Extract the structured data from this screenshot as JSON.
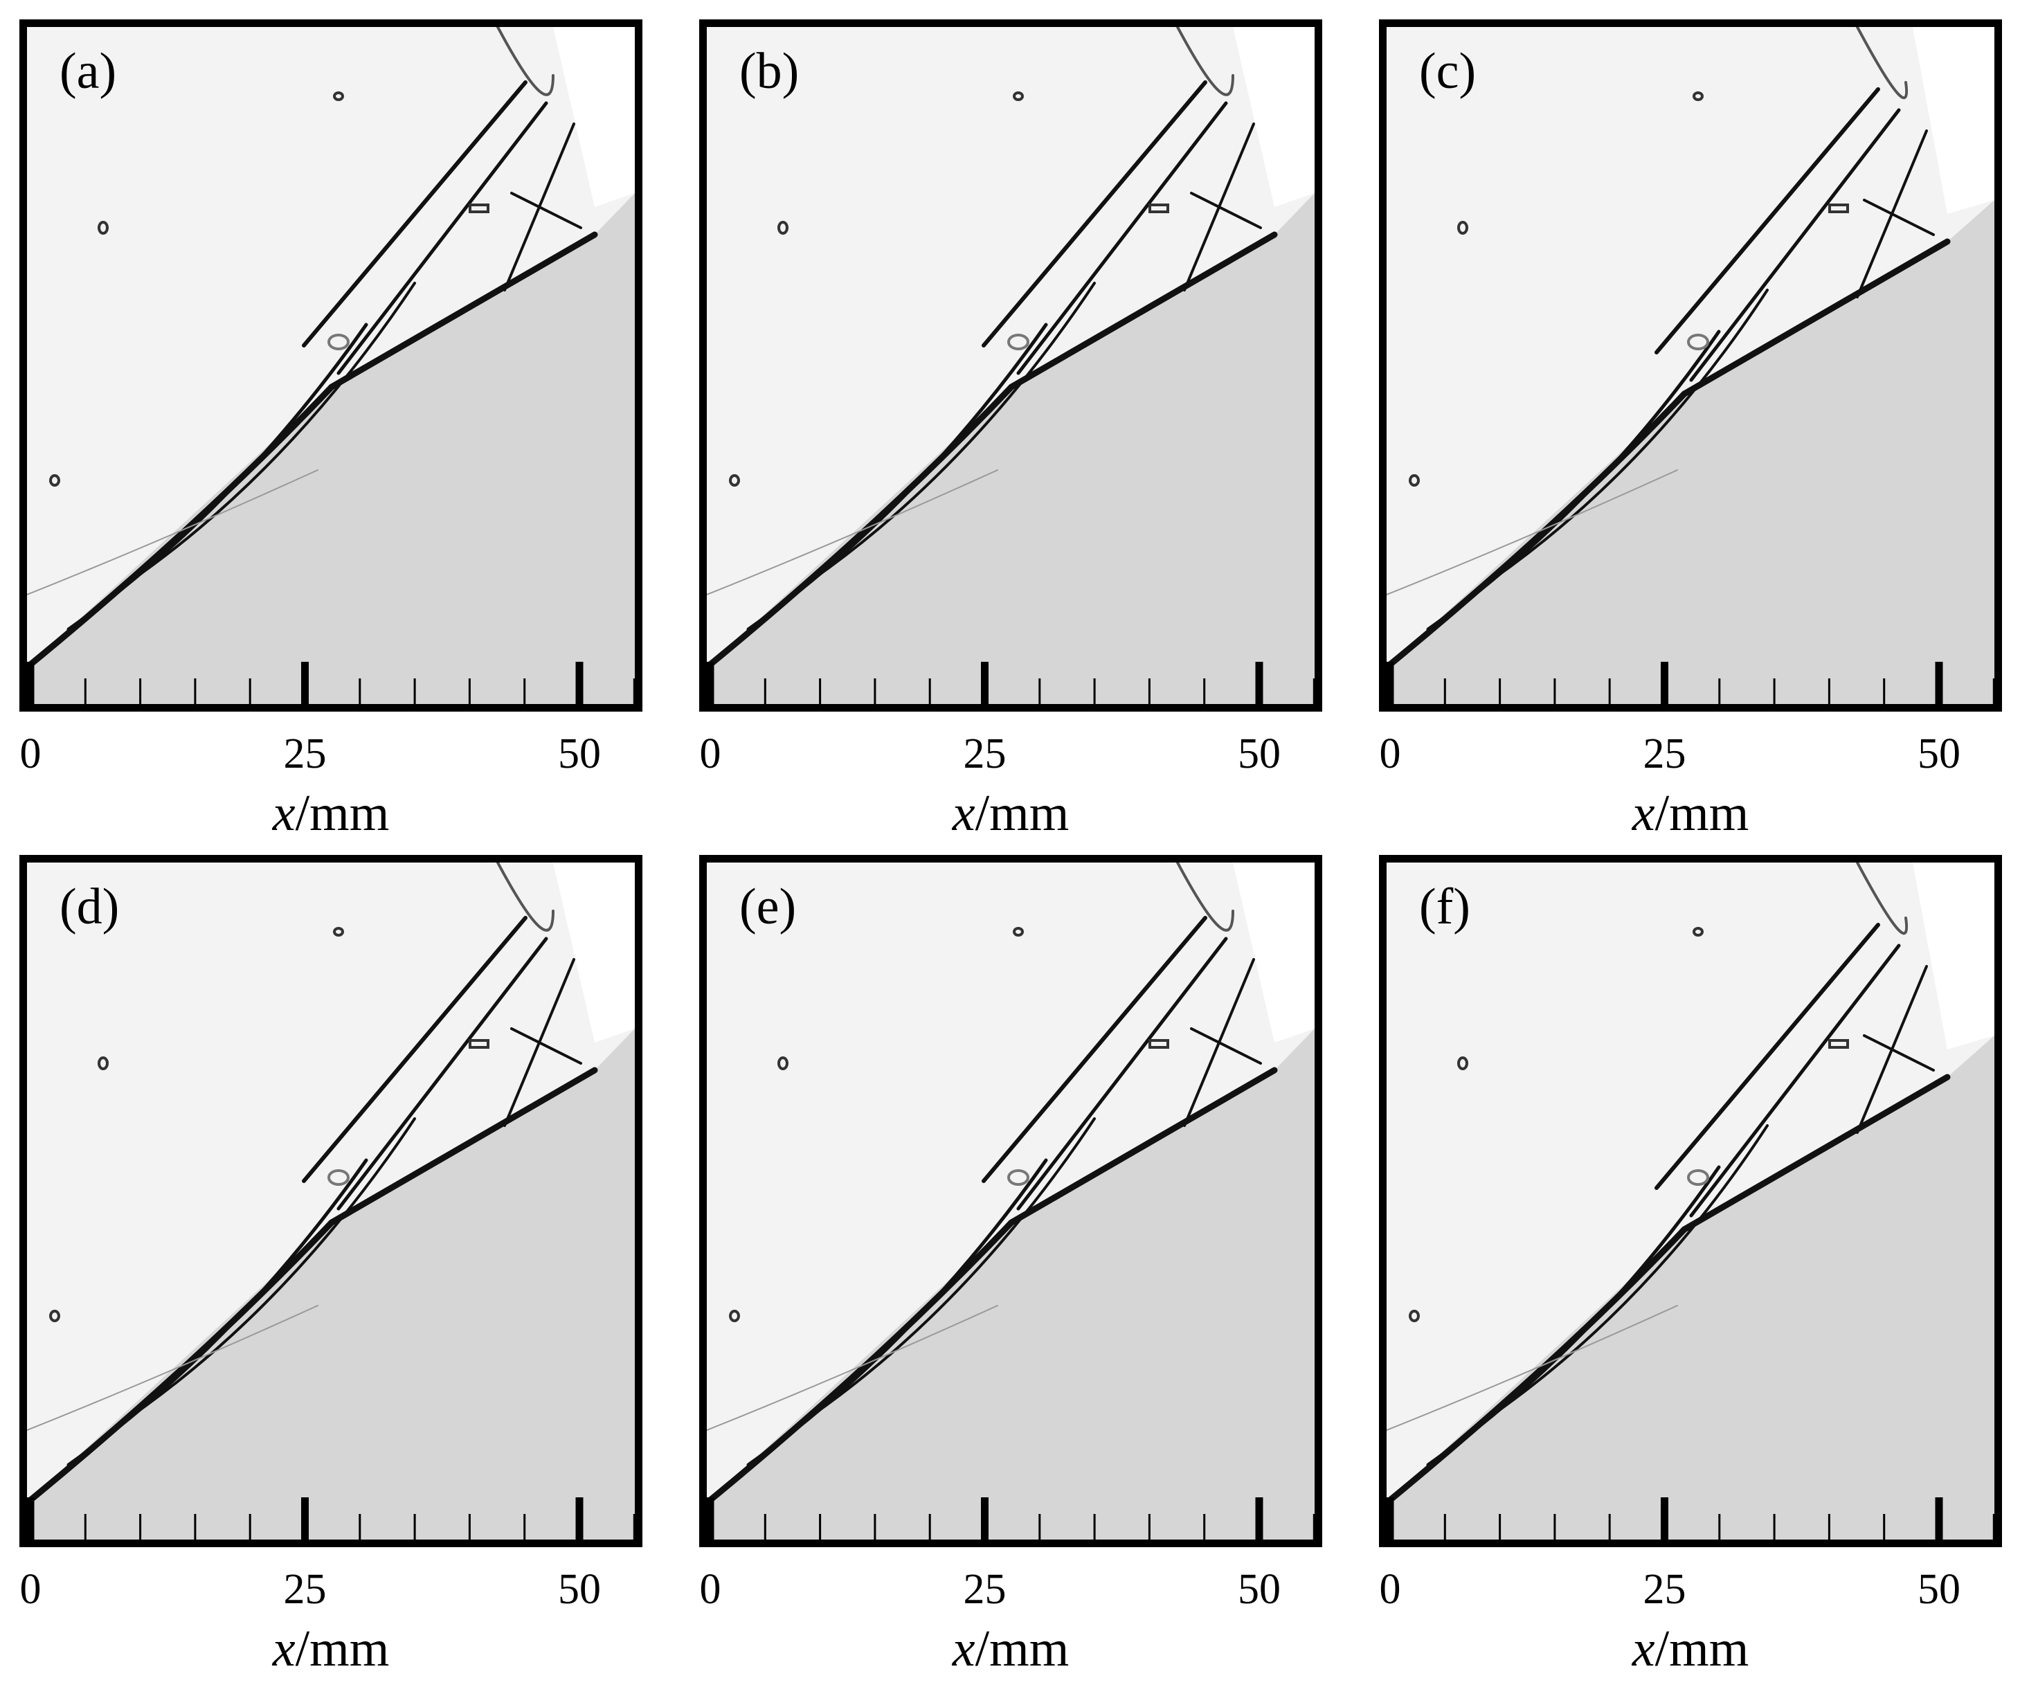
{
  "figure": {
    "panels": [
      {
        "id": "a",
        "label": "(a)"
      },
      {
        "id": "b",
        "label": "(b)"
      },
      {
        "id": "c",
        "label": "(c)"
      },
      {
        "id": "d",
        "label": "(d)"
      },
      {
        "id": "e",
        "label": "(e)"
      },
      {
        "id": "f",
        "label": "(f)"
      }
    ],
    "x_axis": {
      "var": "x",
      "unit": "/mm",
      "tick_labels": [
        "0",
        "25",
        "50"
      ],
      "major_ticks_mm": [
        0,
        25,
        50
      ],
      "minor_tick_step_mm": 5,
      "max_mm": 55
    },
    "colors": {
      "frame": "#000000",
      "flow_background": "#f3f3f3",
      "model_surface": "#d6d6d6",
      "shock_lines": "#111111"
    }
  }
}
